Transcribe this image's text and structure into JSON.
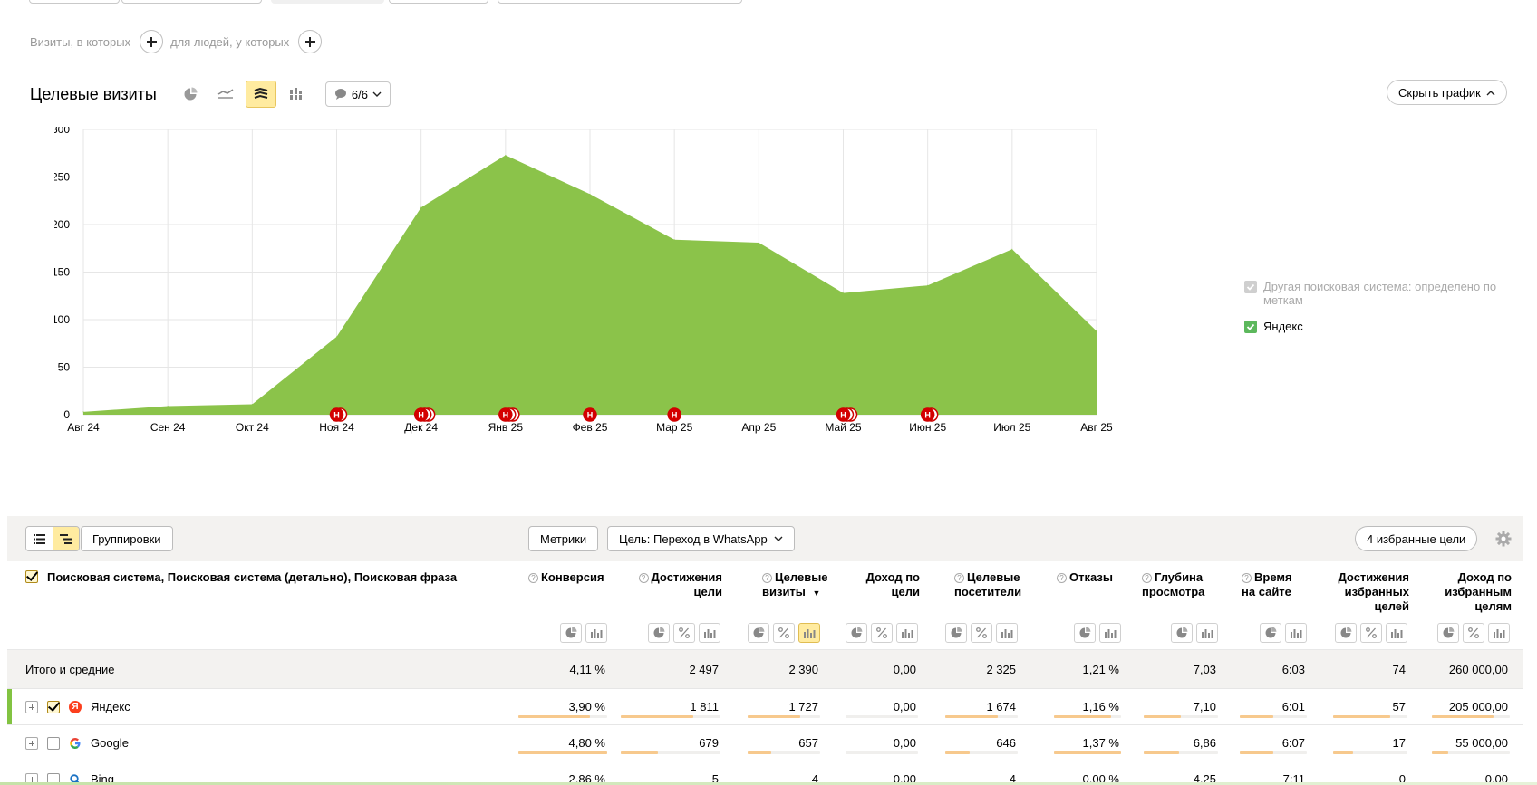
{
  "filters": {
    "visits_label": "Визиты, в которых",
    "people_label": "для людей, у которых"
  },
  "chart_header": {
    "title": "Целевые визиты",
    "notes_count": "6/6",
    "hide_label": "Скрыть график"
  },
  "chart_data": {
    "type": "area",
    "categories": [
      "Авг 24",
      "Сен 24",
      "Окт 24",
      "Ноя 24",
      "Дек 24",
      "Янв 25",
      "Фев 25",
      "Мар 25",
      "Апр 25",
      "Май 25",
      "Июн 25",
      "Июл 25",
      "Авг 25"
    ],
    "series": [
      {
        "name": "Яндекс",
        "values": [
          3,
          9,
          11,
          82,
          218,
          273,
          232,
          184,
          181,
          128,
          136,
          174,
          88
        ],
        "color": "#8bc34a"
      }
    ],
    "ylim": [
      0,
      300
    ],
    "yticks": [
      0,
      50,
      100,
      150,
      200,
      250,
      300
    ],
    "grid": true,
    "legend": "right",
    "annotations": [
      {
        "x": "Ноя 24",
        "label": "Н",
        "count": 2
      },
      {
        "x": "Дек 24",
        "label": "Н",
        "count": 3
      },
      {
        "x": "Янв 25",
        "label": "Н",
        "count": 3
      },
      {
        "x": "Фев 25",
        "label": "Н",
        "count": 1
      },
      {
        "x": "Мар 25",
        "label": "Н",
        "count": 1
      },
      {
        "x": "Май 25",
        "label": "Н",
        "count": 3
      },
      {
        "x": "Июн 25",
        "label": "Н",
        "count": 2
      }
    ]
  },
  "legend": {
    "items": [
      {
        "label": "Другая поисковая система: определено по меткам",
        "muted": true
      },
      {
        "label": "Яндекс",
        "muted": false
      }
    ]
  },
  "toolbar": {
    "groupings_label": "Группировки",
    "metrics_label": "Метрики",
    "goal_label": "Цель: Переход в WhatsApp",
    "favorites_label": "4 избранные цели"
  },
  "table": {
    "dimension_header": "Поисковая система, Поисковая система (детально), Поисковая фраза",
    "columns": [
      {
        "line1": "Конверсия",
        "line2": "",
        "line3": ""
      },
      {
        "line1": "Достижения",
        "line2": "цели",
        "line3": ""
      },
      {
        "line1": "Целевые",
        "line2": "визиты",
        "line3": ""
      },
      {
        "line1": "Доход по",
        "line2": "цели",
        "line3": ""
      },
      {
        "line1": "Целевые",
        "line2": "посетители",
        "line3": ""
      },
      {
        "line1": "Отказы",
        "line2": "",
        "line3": ""
      },
      {
        "line1": "Глубина",
        "line2": "просмотра",
        "line3": ""
      },
      {
        "line1": "Время",
        "line2": "на сайте",
        "line3": ""
      },
      {
        "line1": "Достижения",
        "line2": "избранных",
        "line3": "целей"
      },
      {
        "line1": "Доход по",
        "line2": "избранным",
        "line3": "целям"
      }
    ],
    "total": {
      "label": "Итого и средние",
      "values": [
        "4,11 %",
        "2 497",
        "2 390",
        "0,00",
        "2 325",
        "1,21 %",
        "7,03",
        "6:03",
        "74",
        "260 000,00"
      ]
    },
    "rows": [
      {
        "label": "Яндекс",
        "icon": "yandex-icon",
        "values": [
          "3,90 %",
          "1 811",
          "1 727",
          "0,00",
          "1 674",
          "1,16 %",
          "7,10",
          "6:01",
          "57",
          "205 000,00"
        ],
        "fill": [
          0.81,
          0.73,
          0.72,
          0,
          0.72,
          0.85,
          0.5,
          0.5,
          0.77,
          0.79
        ]
      },
      {
        "label": "Google",
        "icon": "google-icon",
        "values": [
          "4,80 %",
          "679",
          "657",
          "0,00",
          "646",
          "1,37 %",
          "6,86",
          "6:07",
          "17",
          "55 000,00"
        ],
        "fill": [
          1.0,
          0.37,
          0.33,
          0,
          0.34,
          1.0,
          0.48,
          0.5,
          0.27,
          0.21
        ]
      },
      {
        "label": "Bing",
        "icon": "bing-icon",
        "values": [
          "2,86 %",
          "5",
          "4",
          "0,00",
          "4",
          "0,00 %",
          "4,25",
          "7:11",
          "0",
          "0,00"
        ],
        "fill": [
          0.6,
          0.01,
          0.01,
          0,
          0.01,
          0,
          0.3,
          0.6,
          0,
          0
        ]
      }
    ]
  }
}
